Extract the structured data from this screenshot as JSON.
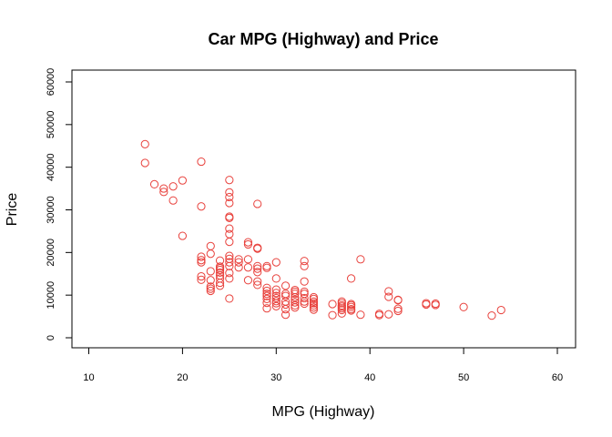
{
  "chart_data": {
    "type": "scatter",
    "title": "Car MPG (Highway) and Price",
    "xlabel": "MPG (Highway)",
    "ylabel": "Price",
    "xlim": [
      10,
      60
    ],
    "ylim": [
      0,
      60000
    ],
    "xticks": [
      10,
      20,
      30,
      40,
      50,
      60
    ],
    "yticks": [
      0,
      10000,
      20000,
      30000,
      40000,
      50000,
      60000
    ],
    "grid": false,
    "marker": "open-circle",
    "point_color": "#e8413c",
    "points": [
      [
        16,
        45400
      ],
      [
        16,
        41000
      ],
      [
        17,
        36000
      ],
      [
        18,
        35000
      ],
      [
        18,
        34200
      ],
      [
        19,
        35500
      ],
      [
        19,
        32200
      ],
      [
        20,
        36900
      ],
      [
        20,
        23900
      ],
      [
        22,
        41300
      ],
      [
        22,
        30800
      ],
      [
        22,
        19000
      ],
      [
        22,
        18200
      ],
      [
        22,
        17700
      ],
      [
        22,
        14400
      ],
      [
        22,
        13600
      ],
      [
        23,
        21500
      ],
      [
        23,
        19700
      ],
      [
        23,
        15600
      ],
      [
        23,
        13500
      ],
      [
        23,
        12000
      ],
      [
        23,
        11500
      ],
      [
        23,
        11000
      ],
      [
        24,
        18100
      ],
      [
        24,
        16700
      ],
      [
        24,
        16300
      ],
      [
        24,
        15900
      ],
      [
        24,
        15300
      ],
      [
        24,
        14600
      ],
      [
        24,
        13900
      ],
      [
        24,
        12900
      ],
      [
        24,
        12200
      ],
      [
        25,
        37000
      ],
      [
        25,
        34100
      ],
      [
        25,
        33000
      ],
      [
        25,
        31600
      ],
      [
        25,
        28400
      ],
      [
        25,
        28100
      ],
      [
        25,
        25600
      ],
      [
        25,
        24300
      ],
      [
        25,
        22500
      ],
      [
        25,
        19200
      ],
      [
        25,
        18500
      ],
      [
        25,
        17700
      ],
      [
        25,
        16800
      ],
      [
        25,
        15200
      ],
      [
        25,
        13900
      ],
      [
        25,
        9200
      ],
      [
        26,
        18400
      ],
      [
        26,
        17700
      ],
      [
        26,
        16500
      ],
      [
        27,
        22400
      ],
      [
        27,
        21900
      ],
      [
        27,
        18400
      ],
      [
        27,
        16500
      ],
      [
        27,
        13500
      ],
      [
        28,
        31400
      ],
      [
        28,
        21100
      ],
      [
        28,
        20900
      ],
      [
        28,
        16800
      ],
      [
        28,
        16200
      ],
      [
        28,
        15400
      ],
      [
        28,
        13200
      ],
      [
        28,
        12400
      ],
      [
        29,
        16800
      ],
      [
        29,
        16400
      ],
      [
        29,
        11700
      ],
      [
        29,
        11000
      ],
      [
        29,
        10300
      ],
      [
        29,
        9800
      ],
      [
        29,
        9100
      ],
      [
        29,
        8200
      ],
      [
        29,
        6900
      ],
      [
        30,
        17700
      ],
      [
        30,
        13900
      ],
      [
        30,
        11300
      ],
      [
        30,
        10500
      ],
      [
        30,
        9800
      ],
      [
        30,
        9300
      ],
      [
        30,
        8600
      ],
      [
        30,
        8100
      ],
      [
        30,
        7400
      ],
      [
        31,
        12200
      ],
      [
        31,
        10300
      ],
      [
        31,
        9800
      ],
      [
        31,
        8500
      ],
      [
        31,
        7800
      ],
      [
        31,
        6700
      ],
      [
        31,
        5400
      ],
      [
        32,
        11200
      ],
      [
        32,
        10800
      ],
      [
        32,
        10300
      ],
      [
        32,
        9500
      ],
      [
        32,
        8900
      ],
      [
        32,
        8300
      ],
      [
        32,
        7600
      ],
      [
        32,
        7100
      ],
      [
        33,
        18000
      ],
      [
        33,
        16800
      ],
      [
        33,
        13200
      ],
      [
        33,
        10800
      ],
      [
        33,
        10300
      ],
      [
        33,
        9300
      ],
      [
        33,
        8500
      ],
      [
        33,
        8000
      ],
      [
        34,
        9500
      ],
      [
        34,
        9100
      ],
      [
        34,
        8500
      ],
      [
        34,
        8100
      ],
      [
        34,
        7600
      ],
      [
        34,
        7100
      ],
      [
        34,
        6600
      ],
      [
        36,
        7900
      ],
      [
        36,
        5300
      ],
      [
        37,
        8500
      ],
      [
        37,
        8100
      ],
      [
        37,
        7600
      ],
      [
        37,
        7300
      ],
      [
        37,
        6900
      ],
      [
        37,
        6500
      ],
      [
        37,
        5700
      ],
      [
        38,
        13900
      ],
      [
        38,
        7900
      ],
      [
        38,
        7600
      ],
      [
        38,
        7200
      ],
      [
        38,
        6700
      ],
      [
        38,
        6400
      ],
      [
        39,
        18400
      ],
      [
        39,
        5400
      ],
      [
        41,
        5600
      ],
      [
        41,
        5300
      ],
      [
        42,
        10900
      ],
      [
        42,
        9600
      ],
      [
        42,
        5500
      ],
      [
        43,
        8800
      ],
      [
        43,
        8900
      ],
      [
        43,
        6800
      ],
      [
        43,
        6300
      ],
      [
        46,
        8100
      ],
      [
        46,
        7800
      ],
      [
        47,
        8000
      ],
      [
        47,
        7700
      ],
      [
        50,
        7200
      ],
      [
        53,
        5200
      ],
      [
        54,
        6500
      ]
    ]
  }
}
